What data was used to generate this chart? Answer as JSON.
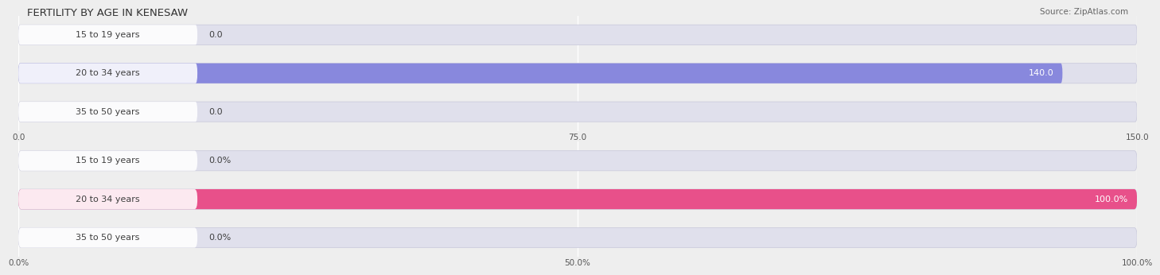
{
  "title": "FERTILITY BY AGE IN KENESAW",
  "source": "Source: ZipAtlas.com",
  "top_chart": {
    "categories": [
      "15 to 19 years",
      "20 to 34 years",
      "35 to 50 years"
    ],
    "values": [
      0.0,
      140.0,
      0.0
    ],
    "xlim": [
      0,
      150.0
    ],
    "xticks": [
      0.0,
      75.0,
      150.0
    ],
    "xticklabels": [
      "0.0",
      "75.0",
      "150.0"
    ],
    "bar_color_full": "#8888dd",
    "bar_color_zero": "#bbbbee",
    "label_color": "#404040"
  },
  "bottom_chart": {
    "categories": [
      "15 to 19 years",
      "20 to 34 years",
      "35 to 50 years"
    ],
    "values": [
      0.0,
      100.0,
      0.0
    ],
    "xlim": [
      0,
      100.0
    ],
    "xticks": [
      0.0,
      50.0,
      100.0
    ],
    "xticklabels": [
      "0.0%",
      "50.0%",
      "100.0%"
    ],
    "bar_color_full": "#e8508a",
    "bar_color_zero": "#f0a0c0",
    "label_color": "#404040"
  },
  "bg_color": "#eeeeee",
  "bar_bg_color": "#e0e0ec",
  "bar_height": 0.52,
  "title_fontsize": 9.5,
  "label_fontsize": 8.0,
  "tick_fontsize": 7.5,
  "source_fontsize": 7.5,
  "label_color": "#404040"
}
